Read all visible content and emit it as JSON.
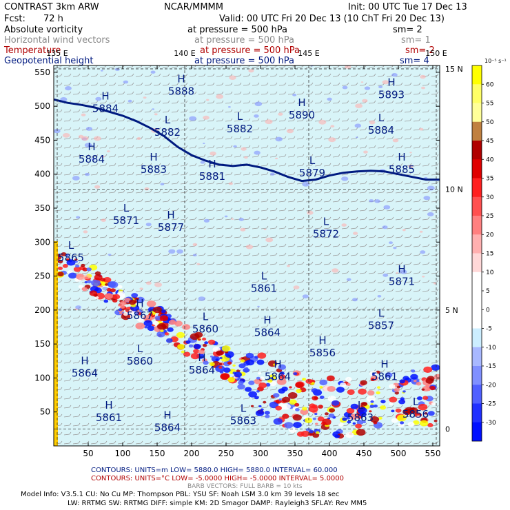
{
  "header": {
    "model": "CONTRAST  3km ARW",
    "center": "NCAR/MMMM",
    "init": "Init: 00 UTC Tue 17 Dec 13",
    "fcst_label": "Fcst:",
    "fcst_value": "72 h",
    "valid": "Valid: 00 UTC Fri 20 Dec 13 (10 ChT Fri 20 Dec 13)",
    "fields": [
      {
        "name": "Absolute vorticity",
        "level": "at pressure =   500 hPa",
        "sm": "sm= 2",
        "color": "#000000"
      },
      {
        "name": "Horizontal wind vectors",
        "level": "at pressure =   500 hPa",
        "sm": "sm= 1",
        "color": "#8a8a8a"
      },
      {
        "name": "Temperature",
        "level": "at pressure =   500 hPa",
        "sm": "sm= 2",
        "color": "#b00000"
      },
      {
        "name": "Geopotential height",
        "level": "at pressure =   500 hPa",
        "sm": "sm= 4",
        "color": "#001a80"
      }
    ]
  },
  "colorbar": {
    "unit": "10⁻⁵ s⁻¹",
    "levels": [
      "60",
      "55",
      "50",
      "45",
      "40",
      "35",
      "30",
      "25",
      "20",
      "15",
      "10",
      "5",
      "0",
      "-5",
      "-10",
      "-15",
      "-20",
      "-25",
      "-30"
    ],
    "colors": [
      "#ffff00",
      "#ffff66",
      "#ffff99",
      "#c08040",
      "#b00000",
      "#e00000",
      "#ff2020",
      "#ff5050",
      "#ff8080",
      "#ffb0b0",
      "#ffd8d8",
      "#ffffff",
      "#ffffff",
      "#ffffff",
      "#cceeff",
      "#a8b8ff",
      "#8090ff",
      "#5060ff",
      "#2030ff",
      "#0010ff"
    ]
  },
  "chart_data": {
    "type": "heatmap",
    "xlim": [
      0,
      560
    ],
    "ylim": [
      0,
      560
    ],
    "x_ticks": [
      50,
      100,
      150,
      200,
      250,
      300,
      350,
      400,
      450,
      500,
      550
    ],
    "y_ticks": [
      50,
      100,
      150,
      200,
      250,
      300,
      350,
      400,
      450,
      500,
      550
    ],
    "lon_labels": [
      {
        "text": "135 E",
        "x": 5
      },
      {
        "text": "140 E",
        "x": 190
      },
      {
        "text": "145 E",
        "x": 370
      },
      {
        "text": "150 E",
        "x": 555
      }
    ],
    "lat_labels": [
      {
        "text": "15 N",
        "y": 555
      },
      {
        "text": "10 N",
        "y": 378
      },
      {
        "text": "5 N",
        "y": 200
      },
      {
        "text": "0",
        "y": 25
      }
    ],
    "pressure_centers": [
      {
        "type": "H",
        "value": "5893",
        "x": 490,
        "y": 530
      },
      {
        "type": "H",
        "value": "5888",
        "x": 185,
        "y": 535
      },
      {
        "type": "H",
        "value": "5884",
        "x": 75,
        "y": 510
      },
      {
        "type": "H",
        "value": "5890",
        "x": 360,
        "y": 500
      },
      {
        "type": "L",
        "value": "5882",
        "x": 165,
        "y": 475
      },
      {
        "type": "L",
        "value": "5882",
        "x": 270,
        "y": 480
      },
      {
        "type": "L",
        "value": "5884",
        "x": 475,
        "y": 478
      },
      {
        "type": "H",
        "value": "5884",
        "x": 55,
        "y": 435
      },
      {
        "type": "H",
        "value": "5883",
        "x": 145,
        "y": 420
      },
      {
        "type": "H",
        "value": "5881",
        "x": 230,
        "y": 410
      },
      {
        "type": "L",
        "value": "5879",
        "x": 375,
        "y": 415
      },
      {
        "type": "H",
        "value": "5885",
        "x": 505,
        "y": 420
      },
      {
        "type": "L",
        "value": "5871",
        "x": 105,
        "y": 345
      },
      {
        "type": "H",
        "value": "5877",
        "x": 170,
        "y": 335
      },
      {
        "type": "L",
        "value": "5872",
        "x": 395,
        "y": 325
      },
      {
        "type": "L",
        "value": "5865",
        "x": 25,
        "y": 290
      },
      {
        "type": "L",
        "value": "5861",
        "x": 305,
        "y": 245
      },
      {
        "type": "H",
        "value": "5871",
        "x": 505,
        "y": 255
      },
      {
        "type": "H",
        "value": "5867",
        "x": 125,
        "y": 205
      },
      {
        "type": "L",
        "value": "5860",
        "x": 220,
        "y": 185
      },
      {
        "type": "H",
        "value": "5864",
        "x": 310,
        "y": 180
      },
      {
        "type": "L",
        "value": "5857",
        "x": 475,
        "y": 190
      },
      {
        "type": "H",
        "value": "5856",
        "x": 390,
        "y": 150
      },
      {
        "type": "L",
        "value": "5860",
        "x": 125,
        "y": 138
      },
      {
        "type": "H",
        "value": "5864",
        "x": 45,
        "y": 120
      },
      {
        "type": "H",
        "value": "5864",
        "x": 215,
        "y": 125
      },
      {
        "type": "H",
        "value": "5864",
        "x": 325,
        "y": 115
      },
      {
        "type": "H",
        "value": "5861",
        "x": 480,
        "y": 115
      },
      {
        "type": "H",
        "value": "5861",
        "x": 80,
        "y": 55
      },
      {
        "type": "H",
        "value": "5864",
        "x": 165,
        "y": 40
      },
      {
        "type": "L",
        "value": "5863",
        "x": 275,
        "y": 50
      },
      {
        "type": "L",
        "value": "5863",
        "x": 445,
        "y": 55
      },
      {
        "type": "L",
        "value": "5856",
        "x": 525,
        "y": 60
      }
    ],
    "vorticity_band_lon": [
      0,
      20,
      40,
      60,
      80,
      100,
      120,
      140,
      160,
      180,
      200,
      220,
      240,
      260,
      280,
      300,
      320,
      340,
      360,
      380,
      400,
      420,
      440,
      460,
      480,
      500,
      520,
      540,
      560
    ],
    "vorticity_band_lat": [
      280,
      262,
      250,
      240,
      228,
      214,
      200,
      190,
      178,
      165,
      152,
      140,
      128,
      115,
      105,
      92,
      80,
      70,
      60,
      55,
      55,
      58,
      62,
      64,
      66,
      68,
      70,
      72,
      74
    ],
    "isoline_5880_x": [
      0,
      20,
      40,
      60,
      80,
      100,
      120,
      140,
      160,
      180,
      200,
      220,
      240,
      260,
      280,
      300,
      320,
      340,
      360,
      380,
      400,
      420,
      440,
      460,
      480,
      500,
      520,
      540,
      560
    ],
    "isoline_5880_y": [
      510,
      505,
      502,
      498,
      492,
      486,
      478,
      468,
      456,
      440,
      428,
      420,
      414,
      412,
      414,
      410,
      404,
      396,
      390,
      392,
      398,
      402,
      404,
      405,
      404,
      400,
      396,
      392,
      392
    ]
  },
  "footer": {
    "contours1": "CONTOURS:  UNITS=m   LOW=   5880.0       HIGH=  5880.0        INTERVAL=   60.000",
    "contours2": "CONTOURS:  UNITS=°C   LOW= -5.0000        HIGH= -5.0000         INTERVAL=    5.0000",
    "barbs": "BARB VECTORS:  FULL BARB = 10 kts",
    "model1": "Model Info: V3.5.1    CU: No Cu     MP: Thompson     PBL: YSU      SF: Noah LSM     3.0 km   39 levels    18 sec",
    "model2": "LW: RRTMG    SW: RRTMG   DIFF: simple KM: 2D Smagor DAMP: Rayleigh3   SFLAY: Rev MM5"
  }
}
